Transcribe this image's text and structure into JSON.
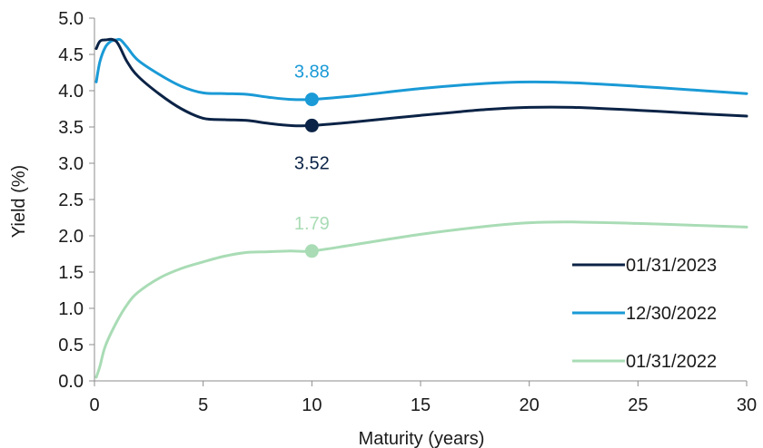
{
  "chart_data": {
    "type": "line",
    "title": "",
    "xlabel": "Maturity (years)",
    "ylabel": "Yield (%)",
    "xlim": [
      0,
      30
    ],
    "ylim": [
      0.0,
      5.0
    ],
    "x_ticks": [
      "0",
      "5",
      "10",
      "15",
      "20",
      "25",
      "30"
    ],
    "y_ticks": [
      "0.0",
      "0.5",
      "1.0",
      "1.5",
      "2.0",
      "2.5",
      "3.0",
      "3.5",
      "4.0",
      "4.5",
      "5.0"
    ],
    "grid": false,
    "legend_position": "bottom-right",
    "series": [
      {
        "name": "01/31/2023",
        "color": "#0b2346",
        "points": [
          [
            0.083,
            4.58
          ],
          [
            0.25,
            4.68
          ],
          [
            0.5,
            4.7
          ],
          [
            1,
            4.68
          ],
          [
            1.5,
            4.4
          ],
          [
            2,
            4.2
          ],
          [
            3,
            3.95
          ],
          [
            4,
            3.75
          ],
          [
            5,
            3.62
          ],
          [
            6,
            3.6
          ],
          [
            7,
            3.59
          ],
          [
            8,
            3.55
          ],
          [
            9,
            3.52
          ],
          [
            10,
            3.52
          ],
          [
            12,
            3.57
          ],
          [
            15,
            3.66
          ],
          [
            18,
            3.74
          ],
          [
            20,
            3.77
          ],
          [
            22,
            3.77
          ],
          [
            25,
            3.73
          ],
          [
            28,
            3.68
          ],
          [
            30,
            3.65
          ]
        ],
        "highlight": {
          "x": 10,
          "y": 3.52,
          "label": "3.52",
          "label_position": "below"
        }
      },
      {
        "name": "12/30/2022",
        "color": "#1a9ad6",
        "points": [
          [
            0.083,
            4.12
          ],
          [
            0.25,
            4.4
          ],
          [
            0.5,
            4.6
          ],
          [
            0.75,
            4.68
          ],
          [
            1,
            4.7
          ],
          [
            1.2,
            4.7
          ],
          [
            1.5,
            4.6
          ],
          [
            2,
            4.42
          ],
          [
            3,
            4.22
          ],
          [
            4,
            4.06
          ],
          [
            5,
            3.97
          ],
          [
            6,
            3.96
          ],
          [
            7,
            3.95
          ],
          [
            8,
            3.91
          ],
          [
            9,
            3.88
          ],
          [
            10,
            3.88
          ],
          [
            12,
            3.93
          ],
          [
            15,
            4.03
          ],
          [
            18,
            4.1
          ],
          [
            20,
            4.12
          ],
          [
            22,
            4.11
          ],
          [
            25,
            4.06
          ],
          [
            28,
            4.0
          ],
          [
            30,
            3.96
          ]
        ],
        "highlight": {
          "x": 10,
          "y": 3.88,
          "label": "3.88",
          "label_position": "above"
        }
      },
      {
        "name": "01/31/2022",
        "color": "#a9dcb5",
        "points": [
          [
            0.083,
            0.05
          ],
          [
            0.25,
            0.2
          ],
          [
            0.5,
            0.48
          ],
          [
            1,
            0.8
          ],
          [
            1.5,
            1.05
          ],
          [
            2,
            1.22
          ],
          [
            3,
            1.42
          ],
          [
            4,
            1.55
          ],
          [
            5,
            1.64
          ],
          [
            6,
            1.72
          ],
          [
            7,
            1.77
          ],
          [
            8,
            1.78
          ],
          [
            9,
            1.79
          ],
          [
            10,
            1.79
          ],
          [
            12,
            1.88
          ],
          [
            15,
            2.02
          ],
          [
            18,
            2.13
          ],
          [
            20,
            2.18
          ],
          [
            22,
            2.19
          ],
          [
            25,
            2.17
          ],
          [
            28,
            2.14
          ],
          [
            30,
            2.12
          ]
        ],
        "highlight": {
          "x": 10,
          "y": 1.79,
          "label": "1.79",
          "label_position": "above"
        }
      }
    ]
  }
}
